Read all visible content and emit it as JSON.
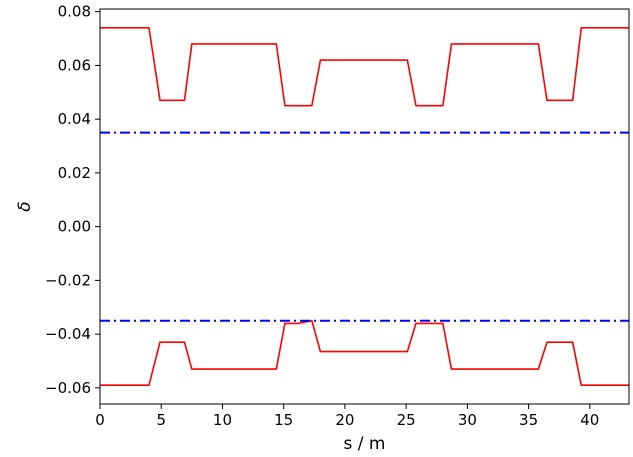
{
  "chart_data": {
    "type": "line",
    "title": "",
    "xlabel": "s / m",
    "ylabel": "δ",
    "xlim": [
      0,
      43.2
    ],
    "ylim": [
      -0.066,
      0.081
    ],
    "x_ticks": [
      0,
      5,
      10,
      15,
      20,
      25,
      30,
      35,
      40
    ],
    "x_tick_labels": [
      "0",
      "5",
      "10",
      "15",
      "20",
      "25",
      "30",
      "35",
      "40"
    ],
    "y_ticks": [
      0.08,
      0.06,
      0.04,
      0.02,
      0.0,
      -0.02,
      -0.04,
      -0.06
    ],
    "y_tick_labels": [
      "0.08",
      "0.06",
      "0.04",
      "0.02",
      "0.00",
      "−0.02",
      "−0.04",
      "−0.06"
    ],
    "grid": false,
    "legend": "none",
    "series": [
      {
        "color": "#ff0000",
        "style": "solid",
        "x": [
          0,
          4.0,
          4.9,
          6.0,
          6.9,
          7.5,
          14.4,
          15.1,
          16.2,
          17.3,
          18.0,
          25.1,
          25.8,
          26.9,
          28.0,
          28.7,
          35.8,
          36.5,
          37.6,
          38.6,
          39.3,
          43.2
        ],
        "y": [
          0.074,
          0.074,
          0.047,
          0.047,
          0.047,
          0.068,
          0.068,
          0.045,
          0.045,
          0.045,
          0.062,
          0.062,
          0.045,
          0.045,
          0.045,
          0.068,
          0.068,
          0.047,
          0.047,
          0.047,
          0.074,
          0.074
        ]
      },
      {
        "color": "#ff0000",
        "style": "solid",
        "x": [
          0,
          4.0,
          4.9,
          6.0,
          6.9,
          7.5,
          14.4,
          15.1,
          16.2,
          17.3,
          18.0,
          25.1,
          25.8,
          26.9,
          28.0,
          28.7,
          35.8,
          36.5,
          37.6,
          38.6,
          39.3,
          43.2
        ],
        "y": [
          -0.059,
          -0.059,
          -0.043,
          -0.043,
          -0.043,
          -0.053,
          -0.053,
          -0.036,
          -0.036,
          -0.035,
          -0.0465,
          -0.0465,
          -0.036,
          -0.036,
          -0.036,
          -0.053,
          -0.053,
          -0.043,
          -0.043,
          -0.043,
          -0.059,
          -0.059
        ]
      },
      {
        "color": "#0000ff",
        "style": "dashdot",
        "x": [
          0,
          43.2
        ],
        "y": [
          0.035,
          0.035
        ]
      },
      {
        "color": "#0000ff",
        "style": "dashdot",
        "x": [
          0,
          43.2
        ],
        "y": [
          -0.035,
          -0.035
        ]
      }
    ]
  }
}
